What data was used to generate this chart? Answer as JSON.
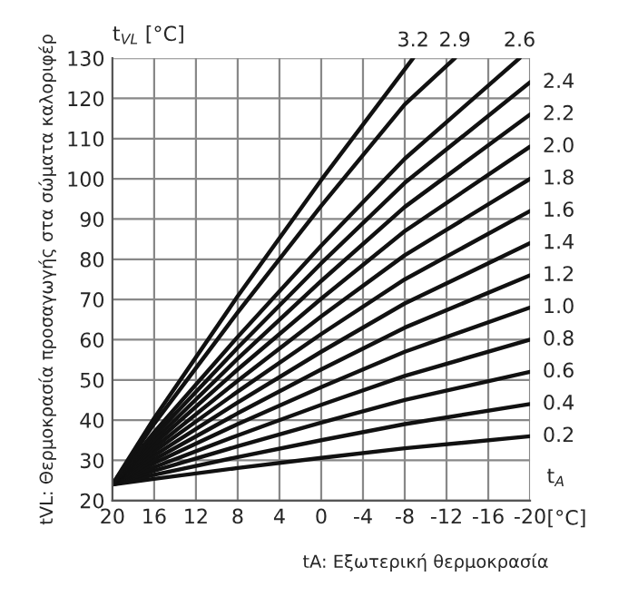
{
  "chart_data": {
    "type": "line",
    "xlabel": "tA: Εξωτερική θερμοκρασία",
    "ylabel": "tVL: Θερμοκρασία προσαγωγής στα σώματα καλοριφέρ",
    "annotations": [
      "t$_{VL}$ [°C]",
      "t$_{A}$",
      "[°C]"
    ],
    "xlim": [
      20,
      -20
    ],
    "ylim": [
      20,
      130
    ],
    "xticks": [
      20,
      16,
      12,
      8,
      4,
      0,
      -4,
      -8,
      -12,
      -16,
      -20
    ],
    "yticks": [
      20,
      30,
      40,
      50,
      60,
      70,
      80,
      90,
      100,
      110,
      120,
      130
    ],
    "grid": true,
    "legend": false,
    "marker": "none",
    "line_style": "solid",
    "series": [
      {
        "name": "0.2",
        "color": "#111111",
        "x": [
          20,
          16,
          8,
          0,
          -8,
          -20
        ],
        "values": [
          24,
          25.4,
          28.1,
          30.6,
          33,
          36
        ]
      },
      {
        "name": "0.4",
        "color": "#111111",
        "x": [
          20,
          16,
          8,
          0,
          -8,
          -20
        ],
        "values": [
          24,
          26.4,
          30.8,
          35,
          39,
          44
        ]
      },
      {
        "name": "0.6",
        "color": "#111111",
        "x": [
          20,
          16,
          8,
          0,
          -8,
          -20
        ],
        "values": [
          24,
          27.4,
          33.5,
          39.4,
          45,
          52
        ]
      },
      {
        "name": "0.8",
        "color": "#111111",
        "x": [
          20,
          16,
          8,
          0,
          -8,
          -20
        ],
        "values": [
          24,
          28.3,
          36.2,
          43.8,
          51,
          60
        ]
      },
      {
        "name": "1.0",
        "color": "#111111",
        "x": [
          20,
          16,
          8,
          0,
          -8,
          -20
        ],
        "values": [
          24,
          29.3,
          39,
          48.2,
          57,
          68
        ]
      },
      {
        "name": "1.2",
        "color": "#111111",
        "x": [
          20,
          16,
          8,
          0,
          -8,
          -20
        ],
        "values": [
          24,
          30.2,
          41.7,
          52.6,
          63,
          76
        ]
      },
      {
        "name": "1.4",
        "color": "#111111",
        "x": [
          20,
          16,
          8,
          0,
          -8,
          -20
        ],
        "values": [
          24,
          31.2,
          44.4,
          57,
          69,
          84
        ]
      },
      {
        "name": "1.6",
        "color": "#111111",
        "x": [
          20,
          16,
          8,
          0,
          -8,
          -20
        ],
        "values": [
          24,
          32.2,
          47.1,
          61.4,
          75,
          92
        ]
      },
      {
        "name": "1.8",
        "color": "#111111",
        "x": [
          20,
          16,
          8,
          0,
          -8,
          -20
        ],
        "values": [
          24,
          33.1,
          49.8,
          65.8,
          81,
          100
        ]
      },
      {
        "name": "2.0",
        "color": "#111111",
        "x": [
          20,
          16,
          8,
          0,
          -8,
          -20
        ],
        "values": [
          24,
          34.1,
          52.6,
          70.2,
          87,
          108
        ]
      },
      {
        "name": "2.2",
        "color": "#111111",
        "x": [
          20,
          16,
          8,
          0,
          -8,
          -20
        ],
        "values": [
          24,
          35,
          55.3,
          74.6,
          93,
          116
        ]
      },
      {
        "name": "2.4",
        "color": "#111111",
        "x": [
          20,
          16,
          8,
          0,
          -8,
          -20
        ],
        "values": [
          24,
          36,
          58,
          79,
          99,
          124
        ]
      },
      {
        "name": "2.6",
        "color": "#111111",
        "x": [
          20,
          16,
          8,
          0,
          -8,
          -19
        ],
        "values": [
          24,
          37,
          60.7,
          83.4,
          105,
          130
        ]
      },
      {
        "name": "2.9",
        "color": "#111111",
        "x": [
          20,
          16,
          8,
          0,
          -8,
          -12.8
        ],
        "values": [
          24,
          39.1,
          66.8,
          93.3,
          118.5,
          130
        ]
      },
      {
        "name": "3.2",
        "color": "#111111",
        "x": [
          20,
          16,
          8,
          0,
          -8.8
        ],
        "values": [
          24,
          40.5,
          70.8,
          99.7,
          130
        ]
      }
    ]
  }
}
